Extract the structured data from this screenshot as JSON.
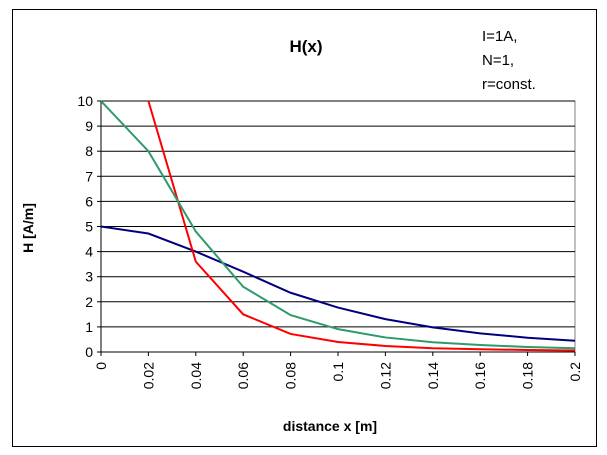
{
  "chart_data": {
    "type": "line",
    "title": "H(x)",
    "xlabel": "distance x [m]",
    "ylabel": "H [A/m]",
    "annotation": [
      "I=1A,",
      "N=1,",
      "r=const."
    ],
    "x": [
      0,
      0.02,
      0.04,
      0.06,
      0.08,
      0.1,
      0.12,
      0.14,
      0.16,
      0.18,
      0.2
    ],
    "x_tick_labels": [
      "0",
      "0.02",
      "0.04",
      "0.06",
      "0.08",
      "0.1",
      "0.12",
      "0.14",
      "0.16",
      "0.18",
      "0.2"
    ],
    "y_tick_labels": [
      "0",
      "1",
      "2",
      "3",
      "4",
      "5",
      "6",
      "7",
      "8",
      "9",
      "10"
    ],
    "xlim": [
      0,
      0.2
    ],
    "ylim": [
      0,
      10
    ],
    "grid": "horizontal",
    "series": [
      {
        "color": "#00007f",
        "values": [
          5.0,
          4.72,
          4.0,
          3.2,
          2.36,
          1.77,
          1.31,
          0.98,
          0.74,
          0.57,
          0.45
        ]
      },
      {
        "color": "#ff0000",
        "values": [
          null,
          10.0,
          3.6,
          1.5,
          0.72,
          0.4,
          0.24,
          0.15,
          0.11,
          0.08,
          0.06
        ]
      },
      {
        "color": "#2e9b6b",
        "values": [
          10.0,
          8.0,
          4.8,
          2.6,
          1.47,
          0.91,
          0.58,
          0.39,
          0.28,
          0.2,
          0.15
        ]
      }
    ]
  }
}
